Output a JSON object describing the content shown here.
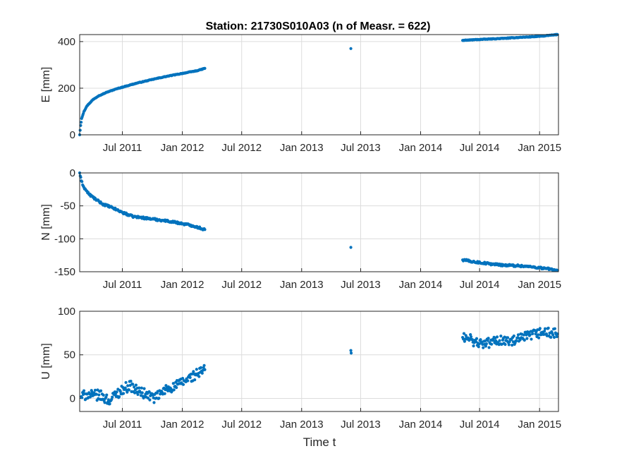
{
  "chart_data": [
    {
      "type": "scatter",
      "title": "Station: 21730S010A03 (n of Measr. = 622)",
      "ylabel": "E [mm]",
      "xlabel": "",
      "ylim": [
        0,
        430
      ],
      "yticks": [
        0,
        200,
        400
      ],
      "ytick_labels": [
        "0",
        "200",
        "400"
      ],
      "xlim": [
        "2011-02-20",
        "2015-02-28"
      ],
      "xticks": [
        "2011-07-01",
        "2012-01-01",
        "2012-07-01",
        "2013-01-01",
        "2013-07-01",
        "2014-01-01",
        "2014-07-01",
        "2015-01-01"
      ],
      "xtick_labels": [
        "Jul 2011",
        "Jan 2012",
        "Jul 2012",
        "Jan 2013",
        "Jul 2013",
        "Jan 2014",
        "Jul 2014",
        "Jan 2015"
      ],
      "grid": true,
      "color": "#0072BD",
      "series": [
        {
          "x": [
            "2011-02-20",
            "2011-02-23",
            "2011-02-26",
            "2011-03-05",
            "2011-03-15",
            "2011-04-01",
            "2011-04-20",
            "2011-05-15",
            "2011-06-15",
            "2011-07-15",
            "2011-08-15",
            "2011-09-15",
            "2011-10-15",
            "2011-11-15",
            "2011-12-15",
            "2012-01-15",
            "2012-02-15",
            "2012-03-10",
            "2013-06-01",
            "2014-05-10",
            "2014-06-15",
            "2014-08-01",
            "2014-09-15",
            "2014-11-01",
            "2014-12-15",
            "2015-01-20",
            "2015-02-25"
          ],
          "y": [
            0,
            40,
            70,
            100,
            125,
            150,
            168,
            183,
            198,
            210,
            222,
            232,
            242,
            251,
            259,
            267,
            275,
            285,
            370,
            405,
            408,
            411,
            414,
            418,
            421,
            425,
            430
          ]
        }
      ]
    },
    {
      "type": "scatter",
      "ylabel": "N [mm]",
      "xlabel": "",
      "ylim": [
        -150,
        0
      ],
      "yticks": [
        -150,
        -100,
        -50,
        0
      ],
      "ytick_labels": [
        "-150",
        "-100",
        "-50",
        "0"
      ],
      "xlim": [
        "2011-02-20",
        "2015-02-28"
      ],
      "xticks": [
        "2011-07-01",
        "2012-01-01",
        "2012-07-01",
        "2013-01-01",
        "2013-07-01",
        "2014-01-01",
        "2014-07-01",
        "2015-01-01"
      ],
      "xtick_labels": [
        "Jul 2011",
        "Jan 2012",
        "Jul 2012",
        "Jan 2013",
        "Jul 2013",
        "Jan 2014",
        "Jul 2014",
        "Jan 2015"
      ],
      "grid": true,
      "color": "#0072BD",
      "series": [
        {
          "x": [
            "2011-02-20",
            "2011-02-25",
            "2011-03-05",
            "2011-03-20",
            "2011-04-10",
            "2011-05-01",
            "2011-06-01",
            "2011-07-01",
            "2011-08-01",
            "2011-09-01",
            "2011-10-01",
            "2011-11-01",
            "2011-12-01",
            "2012-01-01",
            "2012-02-01",
            "2012-03-10",
            "2013-06-01",
            "2014-05-10",
            "2014-06-15",
            "2014-08-01",
            "2014-09-15",
            "2014-11-01",
            "2014-12-15",
            "2015-01-20",
            "2015-02-25"
          ],
          "y": [
            0,
            -12,
            -22,
            -32,
            -40,
            -47,
            -53,
            -60,
            -66,
            -68,
            -70,
            -72,
            -74,
            -77,
            -80,
            -86,
            -113,
            -132,
            -135,
            -138,
            -140,
            -141,
            -143,
            -145,
            -148
          ]
        }
      ]
    },
    {
      "type": "scatter",
      "ylabel": "U [mm]",
      "xlabel": "Time t",
      "ylim": [
        -15,
        100
      ],
      "yticks": [
        0,
        50,
        100
      ],
      "ytick_labels": [
        "0",
        "50",
        "100"
      ],
      "xlim": [
        "2011-02-20",
        "2015-02-28"
      ],
      "xticks": [
        "2011-07-01",
        "2012-01-01",
        "2012-07-01",
        "2013-01-01",
        "2013-07-01",
        "2014-01-01",
        "2014-07-01",
        "2015-01-01"
      ],
      "xtick_labels": [
        "Jul 2011",
        "Jan 2012",
        "Jul 2012",
        "Jan 2013",
        "Jul 2013",
        "Jan 2014",
        "Jul 2014",
        "Jan 2015"
      ],
      "grid": true,
      "color": "#0072BD",
      "series": [
        {
          "x": [
            "2011-02-25",
            "2011-03-15",
            "2011-04-01",
            "2011-04-20",
            "2011-05-10",
            "2011-05-25",
            "2011-06-10",
            "2011-06-25",
            "2011-07-10",
            "2011-07-25",
            "2011-08-10",
            "2011-08-25",
            "2011-09-10",
            "2011-09-25",
            "2011-10-10",
            "2011-10-25",
            "2011-11-10",
            "2011-11-25",
            "2011-12-10",
            "2011-12-25",
            "2012-01-10",
            "2012-01-25",
            "2012-02-10",
            "2012-02-25",
            "2012-03-10",
            "2013-06-01",
            "2013-06-02",
            "2014-05-10",
            "2014-06-01",
            "2014-06-20",
            "2014-07-10",
            "2014-08-01",
            "2014-08-20",
            "2014-09-10",
            "2014-10-01",
            "2014-10-20",
            "2014-11-10",
            "2014-12-01",
            "2014-12-20",
            "2015-01-10",
            "2015-02-01",
            "2015-02-25"
          ],
          "y": [
            2,
            5,
            3,
            4,
            0,
            -3,
            5,
            8,
            12,
            15,
            10,
            7,
            5,
            3,
            0,
            5,
            10,
            12,
            14,
            17,
            20,
            24,
            27,
            30,
            33,
            55,
            52,
            70,
            68,
            65,
            62,
            64,
            66,
            67,
            65,
            66,
            69,
            72,
            74,
            76,
            75,
            74
          ]
        }
      ]
    }
  ]
}
